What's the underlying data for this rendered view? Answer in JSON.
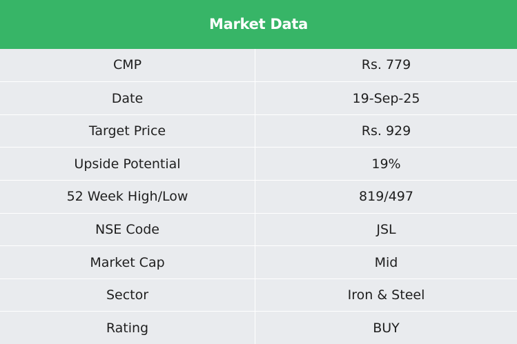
{
  "header": {
    "title": "Market Data"
  },
  "rows": [
    {
      "label": "CMP",
      "value": "Rs. 779"
    },
    {
      "label": "Date",
      "value": "19-Sep-25"
    },
    {
      "label": "Target Price",
      "value": "Rs. 929"
    },
    {
      "label": "Upside Potential",
      "value": "19%"
    },
    {
      "label": "52 Week High/Low",
      "value": "819/497"
    },
    {
      "label": "NSE Code",
      "value": "JSL"
    },
    {
      "label": "Market Cap",
      "value": "Mid"
    },
    {
      "label": "Sector",
      "value": "Iron & Steel"
    },
    {
      "label": "Rating",
      "value": "BUY"
    }
  ],
  "colors": {
    "header_bg": "#37b567",
    "row_bg": "#e9ebee",
    "header_text": "#ffffff",
    "body_text": "#1e1e1e"
  }
}
